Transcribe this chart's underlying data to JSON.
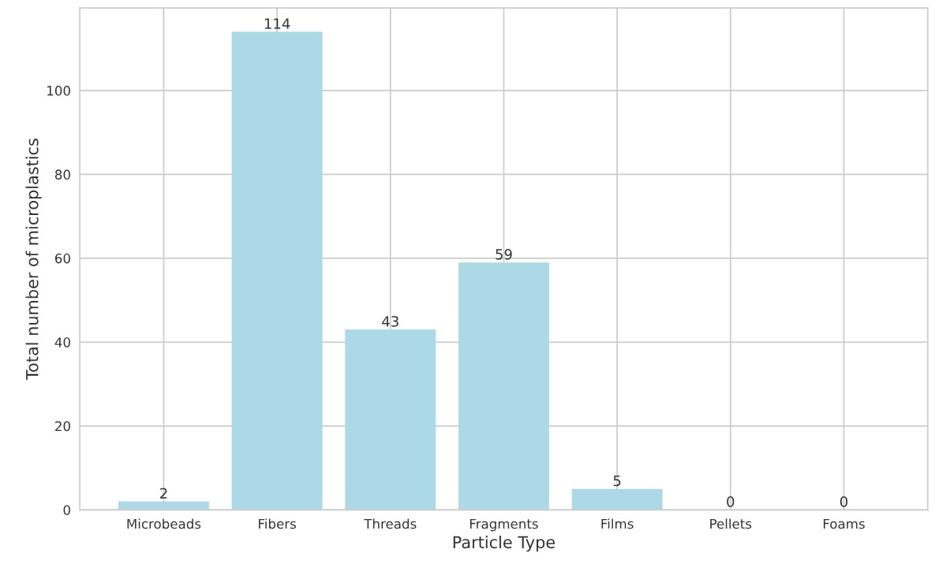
{
  "chart_data": {
    "type": "bar",
    "xlabel": "Particle Type",
    "ylabel": "Total number of microplastics",
    "categories": [
      "Microbeads",
      "Fibers",
      "Threads",
      "Fragments",
      "Films",
      "Pellets",
      "Foams"
    ],
    "values": [
      2,
      114,
      43,
      59,
      5,
      0,
      0
    ],
    "color": "#add8e6",
    "ylim": [
      0,
      119.7
    ],
    "yticks": [
      0,
      20,
      40,
      60,
      80,
      100
    ],
    "grid": true,
    "data_labels": true
  }
}
